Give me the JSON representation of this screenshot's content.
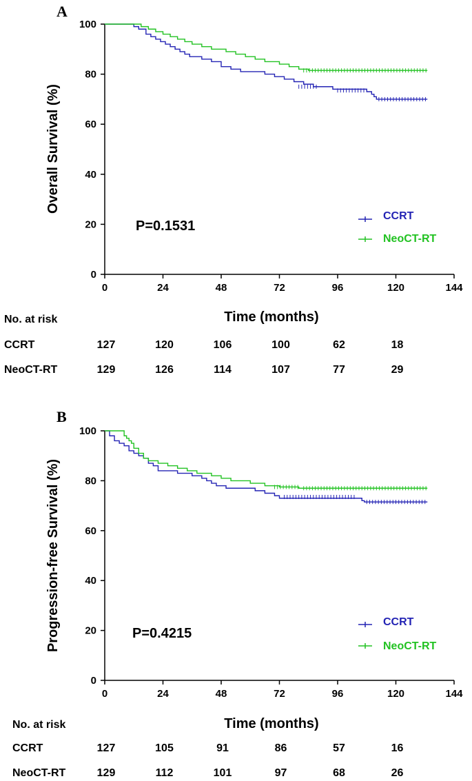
{
  "chart_data": [
    {
      "type": "line",
      "panel_label": "A",
      "xlabel": "Time (months)",
      "ylabel": "Overall Survival (%)",
      "xlim": [
        0,
        144
      ],
      "ylim": [
        0,
        100
      ],
      "x_ticks": [
        0,
        24,
        48,
        72,
        96,
        120,
        144
      ],
      "y_ticks": [
        0,
        20,
        40,
        60,
        80,
        100
      ],
      "annotation": "P=0.1531",
      "legend_position": "right",
      "series": [
        {
          "name": "CCRT",
          "color": "#2323b4",
          "steps": [
            [
              0,
              100
            ],
            [
              12,
              99
            ],
            [
              14,
              98
            ],
            [
              17,
              96
            ],
            [
              19,
              95
            ],
            [
              21,
              94
            ],
            [
              23,
              93
            ],
            [
              25,
              92
            ],
            [
              27,
              91
            ],
            [
              29,
              90
            ],
            [
              31,
              89
            ],
            [
              33,
              88
            ],
            [
              35,
              87
            ],
            [
              40,
              86
            ],
            [
              44,
              85
            ],
            [
              48,
              83
            ],
            [
              52,
              82
            ],
            [
              56,
              81
            ],
            [
              66,
              80
            ],
            [
              70,
              79
            ],
            [
              74,
              78
            ],
            [
              78,
              77
            ],
            [
              82,
              76
            ],
            [
              86,
              75
            ],
            [
              94,
              74
            ],
            [
              108,
              73
            ],
            [
              110,
              72
            ],
            [
              111,
              71
            ],
            [
              112,
              70
            ],
            [
              133,
              70
            ]
          ],
          "censor_ranges": [
            [
              80,
              88,
              75
            ],
            [
              96,
              108,
              73.5
            ],
            [
              113,
              133,
              70
            ]
          ]
        },
        {
          "name": "NeoCT-RT",
          "color": "#22c222",
          "steps": [
            [
              0,
              100
            ],
            [
              15,
              99
            ],
            [
              18,
              98
            ],
            [
              21,
              97
            ],
            [
              24,
              96
            ],
            [
              27,
              95
            ],
            [
              30,
              94
            ],
            [
              33,
              93
            ],
            [
              36,
              92
            ],
            [
              40,
              91
            ],
            [
              44,
              90
            ],
            [
              50,
              89
            ],
            [
              54,
              88
            ],
            [
              58,
              87
            ],
            [
              62,
              86
            ],
            [
              66,
              85
            ],
            [
              72,
              84
            ],
            [
              76,
              83
            ],
            [
              80,
              82
            ],
            [
              84,
              81.5
            ],
            [
              133,
              81.5
            ]
          ],
          "censor_ranges": [
            [
              82,
              133,
              81.5
            ]
          ]
        }
      ],
      "risk_table": {
        "header": "No. at risk",
        "times": [
          0,
          24,
          48,
          72,
          96,
          120
        ],
        "rows": [
          {
            "label": "CCRT",
            "values": [
              "127",
              "120",
              "106",
              "100",
              "62",
              "18"
            ]
          },
          {
            "label": "NeoCT-RT",
            "values": [
              "129",
              "126",
              "114",
              "107",
              "77",
              "29"
            ]
          }
        ]
      }
    },
    {
      "type": "line",
      "panel_label": "B",
      "xlabel": "Time (months)",
      "ylabel": "Progression-free Survival (%)",
      "xlim": [
        0,
        144
      ],
      "ylim": [
        0,
        100
      ],
      "x_ticks": [
        0,
        24,
        48,
        72,
        96,
        120,
        144
      ],
      "y_ticks": [
        0,
        20,
        40,
        60,
        80,
        100
      ],
      "annotation": "P=0.4215",
      "legend_position": "right",
      "series": [
        {
          "name": "CCRT",
          "color": "#2323b4",
          "steps": [
            [
              0,
              100
            ],
            [
              2,
              98
            ],
            [
              4,
              96
            ],
            [
              6,
              95
            ],
            [
              8,
              94
            ],
            [
              10,
              92
            ],
            [
              12,
              91
            ],
            [
              14,
              90
            ],
            [
              16,
              89
            ],
            [
              18,
              87
            ],
            [
              20,
              86
            ],
            [
              22,
              84
            ],
            [
              30,
              83
            ],
            [
              36,
              82
            ],
            [
              40,
              81
            ],
            [
              42,
              80
            ],
            [
              44,
              79
            ],
            [
              46,
              78
            ],
            [
              50,
              77
            ],
            [
              62,
              76
            ],
            [
              66,
              75
            ],
            [
              70,
              74
            ],
            [
              72,
              73
            ],
            [
              104,
              73
            ],
            [
              106,
              72
            ],
            [
              107,
              71.5
            ],
            [
              133,
              71.5
            ]
          ],
          "censor_ranges": [
            [
              74,
              104,
              73.5
            ],
            [
              108,
              133,
              71.5
            ]
          ]
        },
        {
          "name": "NeoCT-RT",
          "color": "#22c222",
          "steps": [
            [
              0,
              100
            ],
            [
              7,
              100
            ],
            [
              8,
              98
            ],
            [
              9,
              97
            ],
            [
              10,
              96
            ],
            [
              11,
              95
            ],
            [
              12,
              93
            ],
            [
              14,
              91
            ],
            [
              16,
              89
            ],
            [
              18,
              88
            ],
            [
              22,
              87
            ],
            [
              26,
              86
            ],
            [
              30,
              85
            ],
            [
              34,
              84
            ],
            [
              38,
              83
            ],
            [
              44,
              82
            ],
            [
              48,
              81
            ],
            [
              52,
              80
            ],
            [
              60,
              79
            ],
            [
              66,
              78
            ],
            [
              72,
              77.5
            ],
            [
              80,
              77
            ],
            [
              133,
              77
            ]
          ],
          "censor_ranges": [
            [
              70,
              80,
              77.5
            ],
            [
              82,
              133,
              77
            ]
          ]
        }
      ],
      "risk_table": {
        "header": "No. at risk",
        "times": [
          0,
          24,
          48,
          72,
          96,
          120
        ],
        "rows": [
          {
            "label": "CCRT",
            "values": [
              "127",
              "105",
              "91",
              "86",
              "57",
              "16"
            ]
          },
          {
            "label": "NeoCT-RT",
            "values": [
              "129",
              "112",
              "101",
              "97",
              "68",
              "26"
            ]
          }
        ]
      }
    }
  ]
}
